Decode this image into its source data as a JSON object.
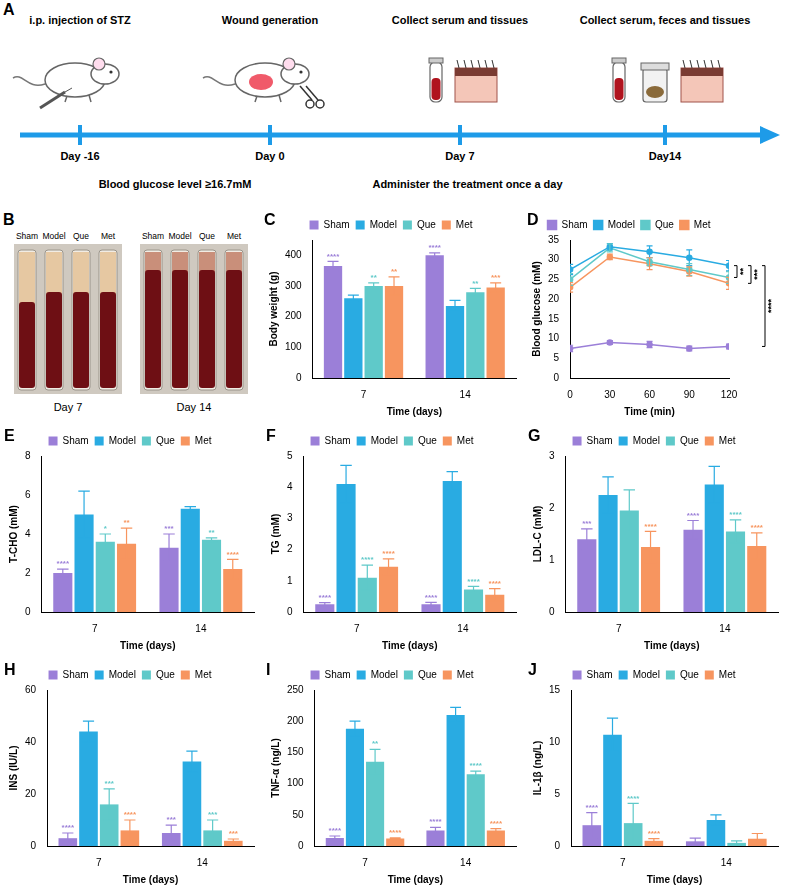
{
  "diagram": {
    "panel": "A",
    "events": [
      {
        "label": "i.p. injection of STZ",
        "day": "Day -16"
      },
      {
        "label": "Wound generation",
        "day": "Day 0"
      },
      {
        "label": "Collect serum and tissues",
        "day": "Day 7"
      },
      {
        "label": "Collect serum, feces and tissues",
        "day": "Day14"
      }
    ],
    "intervals": [
      "Blood glucose level ≥16.7mM",
      "Administer the treatment once a day"
    ]
  },
  "photo": {
    "panel": "B",
    "groups": [
      "Sham",
      "Model",
      "Que",
      "Met"
    ],
    "days": [
      "Day 7",
      "Day 14"
    ]
  },
  "chart_data": [
    {
      "panel": "C",
      "type": "bar",
      "categories": [
        "7",
        "14"
      ],
      "x_label": "Time (days)",
      "y_label": "Body weight (g)",
      "ylim": [
        0,
        450
      ],
      "yticks": [
        0,
        100,
        200,
        300,
        400
      ],
      "grid": false,
      "legend": "top",
      "series": [
        {
          "name": "Sham",
          "color": "#9b7fd8",
          "values": [
            365,
            400
          ],
          "errors": [
            15,
            8
          ],
          "significance": [
            "****",
            "****"
          ]
        },
        {
          "name": "Model",
          "color": "#29abe2",
          "values": [
            260,
            235
          ],
          "errors": [
            10,
            18
          ]
        },
        {
          "name": "Que",
          "color": "#5fc9c9",
          "values": [
            300,
            280
          ],
          "errors": [
            10,
            12
          ],
          "significance": [
            "**",
            "**"
          ]
        },
        {
          "name": "Met",
          "color": "#f7955f",
          "values": [
            300,
            295
          ],
          "errors": [
            30,
            15
          ],
          "significance": [
            "**",
            "***"
          ]
        }
      ]
    },
    {
      "panel": "D",
      "type": "line",
      "x": [
        0,
        30,
        60,
        90,
        120
      ],
      "x_label": "Time (min)",
      "y_label": "Blood glucose (mM)",
      "xlim": [
        0,
        120
      ],
      "xticks": [
        0,
        30,
        60,
        90,
        120
      ],
      "ylim": [
        0,
        35
      ],
      "yticks": [
        0,
        5,
        10,
        15,
        20,
        25,
        30,
        35
      ],
      "grid": false,
      "legend": "top",
      "marker": "circle",
      "series": [
        {
          "name": "Sham",
          "color": "#9b7fd8",
          "values": [
            7.5,
            9,
            8.5,
            7.5,
            8
          ],
          "errors": [
            0.8,
            0.5,
            0.8,
            0.6,
            0.6
          ]
        },
        {
          "name": "Model",
          "color": "#29abe2",
          "values": [
            27.5,
            33.3,
            32,
            30.5,
            28.5
          ],
          "errors": [
            1.3,
            0.8,
            1.5,
            2,
            1.3
          ]
        },
        {
          "name": "Que",
          "color": "#5fc9c9",
          "values": [
            25,
            33,
            29.5,
            27.5,
            25.5
          ],
          "errors": [
            1.5,
            1,
            1,
            1.5,
            1.5
          ]
        },
        {
          "name": "Met",
          "color": "#f7955f",
          "values": [
            23,
            30.7,
            29,
            27,
            24
          ],
          "errors": [
            1.2,
            0.7,
            1.5,
            1.2,
            1.5
          ]
        }
      ],
      "comparisons": [
        {
          "series": [
            "Model",
            "Que"
          ],
          "label": "**"
        },
        {
          "series": [
            "Model",
            "Met"
          ],
          "label": "***"
        },
        {
          "series": [
            "Model",
            "Sham"
          ],
          "label": "****"
        }
      ]
    },
    {
      "panel": "E",
      "type": "bar",
      "categories": [
        "7",
        "14"
      ],
      "x_label": "Time (days)",
      "y_label": "T-CHO (mM)",
      "ylim": [
        0,
        8
      ],
      "yticks": [
        0,
        2,
        4,
        6,
        8
      ],
      "grid": false,
      "legend": "top",
      "series": [
        {
          "name": "Sham",
          "color": "#9b7fd8",
          "values": [
            2.0,
            3.3
          ],
          "errors": [
            0.2,
            0.7
          ],
          "significance": [
            "****",
            "***"
          ]
        },
        {
          "name": "Model",
          "color": "#29abe2",
          "values": [
            5.0,
            5.3
          ],
          "errors": [
            1.2,
            0.1
          ]
        },
        {
          "name": "Que",
          "color": "#5fc9c9",
          "values": [
            3.6,
            3.7
          ],
          "errors": [
            0.4,
            0.1
          ],
          "significance": [
            "*",
            "**"
          ]
        },
        {
          "name": "Met",
          "color": "#f7955f",
          "values": [
            3.5,
            2.2
          ],
          "errors": [
            0.8,
            0.5
          ],
          "significance": [
            "**",
            "****"
          ]
        }
      ]
    },
    {
      "panel": "F",
      "type": "bar",
      "categories": [
        "7",
        "14"
      ],
      "x_label": "Time (days)",
      "y_label": "TG (mM)",
      "ylim": [
        0,
        5
      ],
      "yticks": [
        0,
        1,
        2,
        3,
        4,
        5
      ],
      "grid": false,
      "legend": "top",
      "series": [
        {
          "name": "Sham",
          "color": "#9b7fd8",
          "values": [
            0.25,
            0.25
          ],
          "errors": [
            0.05,
            0.06
          ],
          "significance": [
            "****",
            "****"
          ]
        },
        {
          "name": "Model",
          "color": "#29abe2",
          "values": [
            4.1,
            4.2
          ],
          "errors": [
            0.6,
            0.3
          ]
        },
        {
          "name": "Que",
          "color": "#5fc9c9",
          "values": [
            1.1,
            0.72
          ],
          "errors": [
            0.4,
            0.1
          ],
          "significance": [
            "****",
            "****"
          ]
        },
        {
          "name": "Met",
          "color": "#f7955f",
          "values": [
            1.45,
            0.55
          ],
          "errors": [
            0.25,
            0.2
          ],
          "significance": [
            "****",
            "****"
          ]
        }
      ]
    },
    {
      "panel": "G",
      "type": "bar",
      "categories": [
        "7",
        "14"
      ],
      "x_label": "Time (days)",
      "y_label": "LDL-C (mM)",
      "ylim": [
        0,
        3
      ],
      "yticks": [
        0,
        1,
        2,
        3
      ],
      "grid": false,
      "legend": "top",
      "series": [
        {
          "name": "Sham",
          "color": "#9b7fd8",
          "values": [
            1.4,
            1.58
          ],
          "errors": [
            0.2,
            0.18
          ],
          "significance": [
            "***",
            "****"
          ]
        },
        {
          "name": "Model",
          "color": "#29abe2",
          "values": [
            2.25,
            2.45
          ],
          "errors": [
            0.35,
            0.35
          ]
        },
        {
          "name": "Que",
          "color": "#5fc9c9",
          "values": [
            1.95,
            1.55
          ],
          "errors": [
            0.4,
            0.22
          ],
          "significance": [
            null,
            "****"
          ]
        },
        {
          "name": "Met",
          "color": "#f7955f",
          "values": [
            1.25,
            1.27
          ],
          "errors": [
            0.3,
            0.25
          ],
          "significance": [
            "****",
            "****"
          ]
        }
      ]
    },
    {
      "panel": "H",
      "type": "bar",
      "categories": [
        "7",
        "14"
      ],
      "x_label": "Time (days)",
      "y_label": "INS (IU/L)",
      "ylim": [
        0,
        60
      ],
      "yticks": [
        0,
        20,
        40,
        60
      ],
      "grid": false,
      "legend": "top",
      "series": [
        {
          "name": "Sham",
          "color": "#9b7fd8",
          "values": [
            3,
            5
          ],
          "errors": [
            2,
            3
          ],
          "significance": [
            "****",
            "***"
          ]
        },
        {
          "name": "Model",
          "color": "#29abe2",
          "values": [
            44,
            32.5
          ],
          "errors": [
            4,
            4
          ]
        },
        {
          "name": "Que",
          "color": "#5fc9c9",
          "values": [
            16,
            6
          ],
          "errors": [
            6,
            4
          ],
          "significance": [
            "***",
            "***"
          ]
        },
        {
          "name": "Met",
          "color": "#f7955f",
          "values": [
            6,
            2
          ],
          "errors": [
            4,
            0.7
          ],
          "significance": [
            "****",
            "***"
          ]
        }
      ]
    },
    {
      "panel": "I",
      "type": "bar",
      "categories": [
        "7",
        "14"
      ],
      "x_label": "Time (days)",
      "y_label": "TNF-α (ng/L)",
      "ylim": [
        0,
        250
      ],
      "yticks": [
        0,
        50,
        100,
        150,
        200,
        250
      ],
      "grid": false,
      "legend": "top",
      "series": [
        {
          "name": "Sham",
          "color": "#9b7fd8",
          "values": [
            13,
            25
          ],
          "errors": [
            3,
            5
          ],
          "significance": [
            "****",
            "****"
          ]
        },
        {
          "name": "Model",
          "color": "#29abe2",
          "values": [
            188,
            210
          ],
          "errors": [
            12,
            12
          ]
        },
        {
          "name": "Que",
          "color": "#5fc9c9",
          "values": [
            135,
            115
          ],
          "errors": [
            20,
            5
          ],
          "significance": [
            "**",
            "****"
          ]
        },
        {
          "name": "Met",
          "color": "#f7955f",
          "values": [
            12,
            25
          ],
          "errors": [
            1,
            3
          ],
          "significance": [
            "****",
            "****"
          ]
        }
      ]
    },
    {
      "panel": "J",
      "type": "bar",
      "categories": [
        "7",
        "14"
      ],
      "x_label": "Time (days)",
      "y_label": "IL-1β (ng/L)",
      "ylim": [
        0,
        15
      ],
      "yticks": [
        0,
        5,
        10,
        15
      ],
      "grid": false,
      "legend": "top",
      "series": [
        {
          "name": "Sham",
          "color": "#9b7fd8",
          "values": [
            2,
            0.45
          ],
          "errors": [
            1.2,
            0.3
          ],
          "significance": [
            "****",
            null
          ]
        },
        {
          "name": "Model",
          "color": "#29abe2",
          "values": [
            10.7,
            2.5
          ],
          "errors": [
            1.6,
            0.5
          ]
        },
        {
          "name": "Que",
          "color": "#5fc9c9",
          "values": [
            2.2,
            0.3
          ],
          "errors": [
            1.9,
            0.2
          ],
          "significance": [
            "****",
            null
          ]
        },
        {
          "name": "Met",
          "color": "#f7955f",
          "values": [
            0.5,
            0.7
          ],
          "errors": [
            0.2,
            0.5
          ],
          "significance": [
            "****",
            null
          ]
        }
      ]
    }
  ]
}
